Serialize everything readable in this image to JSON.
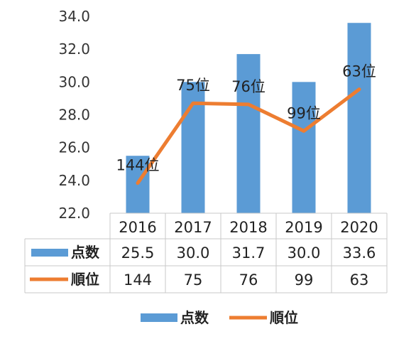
{
  "chart_data": {
    "type": "bar",
    "categories": [
      "2016",
      "2017",
      "2018",
      "2019",
      "2020"
    ],
    "ylim": [
      22.0,
      34.0
    ],
    "yticks": [
      "22.0",
      "24.0",
      "26.0",
      "28.0",
      "30.0",
      "32.0",
      "34.0"
    ],
    "grid": false,
    "legend_position": "bottom",
    "series": [
      {
        "name": "点数",
        "type": "bar",
        "color": "#5b9bd5",
        "values": [
          25.5,
          30.0,
          31.7,
          30.0,
          33.6
        ],
        "labels": [
          "25.5",
          "30.0",
          "31.7",
          "30.0",
          "33.6"
        ]
      },
      {
        "name": "順位",
        "type": "line",
        "color": "#ed7d31",
        "values": [
          144,
          75,
          76,
          99,
          63
        ],
        "labels": [
          "144",
          "75",
          "76",
          "99",
          "63"
        ],
        "data_labels": [
          "144位",
          "75位",
          "76位",
          "99位",
          "63位"
        ]
      }
    ],
    "rank_axis": {
      "min": 0,
      "max": 170,
      "reversed": true
    }
  }
}
